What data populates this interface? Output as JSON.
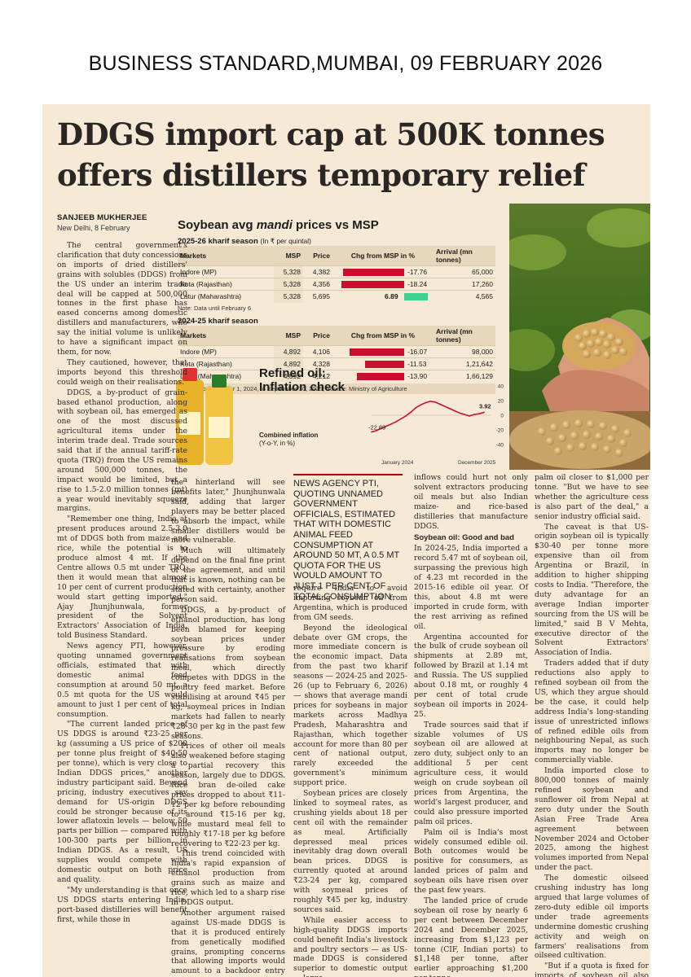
{
  "masthead": "BUSINESS STANDARD,MUMBAI, 09 FEBRUARY 2026",
  "headline": "DDGS import cap at 500K tonnes offers distillers temporary relief",
  "byline": {
    "name": "SANJEEB MUKHERJEE",
    "place": "New Delhi, 8 February"
  },
  "table": {
    "title_pre": "Soybean avg ",
    "title_em": "mandi",
    "title_post": " prices vs MSP",
    "season1": {
      "label": "2025-26 kharif season",
      "unit": "(In ₹ per quintal)",
      "note": "Note: Data until February 6"
    },
    "season2": {
      "label": "2024-25 kharif season",
      "note": "Note: From October 1, 2024, to September 30, 2025; Source: Ministry of Agriculture"
    },
    "headers": {
      "markets": "Markets",
      "msp": "MSP",
      "price": "Price",
      "chg": "Chg from MSP in %",
      "arrival": "Arrival (mn tonnes)"
    },
    "rows1": [
      {
        "market": "Indore (MP)",
        "msp": "5,328",
        "price": "4,382",
        "chg": -17.76,
        "chg_label": "-17.76",
        "arrival": "65,000"
      },
      {
        "market": "Kota (Rajasthan)",
        "msp": "5,328",
        "price": "4,356",
        "chg": -18.24,
        "chg_label": "-18.24",
        "arrival": "17,260"
      },
      {
        "market": "Latur (Maharashtra)",
        "msp": "5,328",
        "price": "5,695",
        "chg": 6.89,
        "chg_label": "6.89",
        "arrival": "4,565"
      }
    ],
    "rows2": [
      {
        "market": "Indore (MP)",
        "msp": "4,892",
        "price": "4,106",
        "chg": -16.07,
        "chg_label": "-16.07",
        "arrival": "98,000"
      },
      {
        "market": "Kota (Rajasthan)",
        "msp": "4,892",
        "price": "4,328",
        "chg": -11.53,
        "chg_label": "-11.53",
        "arrival": "1,21,642"
      },
      {
        "market": "Latur (Maharashtra)",
        "msp": "4,892",
        "price": "4,212",
        "chg": -13.9,
        "chg_label": "-13.90",
        "arrival": "1,66,129"
      }
    ],
    "colors": {
      "negative": "#c8102e",
      "positive": "#3fcf8e"
    }
  },
  "oil_chart": {
    "title": "Refined oil: Inflation check",
    "subtitle_bold": "Combined inflation",
    "subtitle": "(Y-o-Y, in %)",
    "start_label": "-22.89",
    "end_label": "3.92",
    "x_start": "January 2024",
    "x_end": "December 2025",
    "y_ticks": [
      "40",
      "20",
      "0",
      "-20",
      "-40"
    ]
  },
  "chart_data": {
    "type": "line",
    "title": "Refined oil: Inflation check",
    "ylabel": "Combined inflation (Y-o-Y, in %)",
    "ylim": [
      -40,
      40
    ],
    "x": [
      "2024-01",
      "2024-02",
      "2024-03",
      "2024-04",
      "2024-05",
      "2024-06",
      "2024-07",
      "2024-08",
      "2024-09",
      "2024-10",
      "2024-11",
      "2024-12",
      "2025-01",
      "2025-02",
      "2025-03",
      "2025-04",
      "2025-05",
      "2025-06",
      "2025-07",
      "2025-08",
      "2025-09",
      "2025-10",
      "2025-11",
      "2025-12"
    ],
    "series": [
      {
        "values": [
          -22.89,
          -21,
          -18,
          -15,
          -12,
          -9,
          -5,
          -1,
          4,
          10,
          14,
          17,
          19,
          18,
          15,
          12,
          9,
          6,
          3,
          1,
          -1,
          1,
          2,
          3.92
        ]
      }
    ],
    "annotations": [
      "-22.89",
      "3.92"
    ],
    "line_color": "#c8102e"
  },
  "pullquote": "NEWS AGENCY PTI, QUOTING UNNAMED GOVERNMENT OFFICIALS, ESTIMATED THAT WITH DOMESTIC ANIMAL FEED CONSUMPTION AT AROUND 50 MT, A 0.5 MT QUOTA FOR THE US WOULD AMOUNT TO JUST 1 PER CENT OF TOTAL CONSUMPTION",
  "col1": [
    "The central government's clarification that duty concessions on imports of dried distillers' grains with solubles (DDGS) from the US under an interim trade deal will be capped at 500,000 tonnes in the first phase has eased concerns among domestic distillers and manufacturers, who say the initial volume is unlikely to have a significant impact on them, for now.",
    "They cautioned, however, that imports beyond this threshold could weigh on their realisations.",
    "DDGS, a by-product of grain-based ethanol production, along with soybean oil, has emerged as one of the most discussed agricultural items under the interim trade deal. Trade sources said that if the annual tariff-rate quota (TRQ) from the US remains around 500,000 tonnes, the impact would be limited, but a rise to 1.5-2.0 million tonnes (mt) a year would inevitably squeeze margins.",
    "\"Remember one thing, India at present produces around 2.5-3.0 mt of DDGS both from maize and rice, while the potential is to produce almost 4 mt. If the Centre allows 0.5 mt under TRQ, then it would mean that almost 10 per cent of current production would start getting imported,\" Ajay Jhunjhunwala, former president of the Solvent Extractors' Association of India, told Business Standard.",
    "News agency PTI, however, quoting unnamed government officials, estimated that with domestic animal feed consumption at around 50 mt, a 0.5 mt quota for the US would amount to just 1 per cent of total consumption.",
    "\"The current landed price of US DDGS is around ₹23-25 per kg (assuming a US price of $200 per tonne plus freight of $40-50 per tonne), which is very close to Indian DDGS prices,\" another industry participant said. Beyond pricing, industry executives say demand for US-origin DDGS could be stronger because of its lower aflatoxin levels — below 50 parts per billion — compared with 100-300 parts per billion in Indian DDGS. As a result, US supplies would compete with domestic output on both price and quality.",
    "\"My understanding is that once US DDGS starts entering India, port-based distilleries will benefit first, while those in"
  ],
  "col2": [
    "the hinterland will see benefits later,\" Jhunjhunwala said, adding that larger players may be better placed to absorb the impact, while smaller distillers would be more vulnerable.",
    "Much will ultimately depend on the final fine print of the agreement, and until that is known, nothing can be stated with certainty, another person said.",
    "DDGS, a by-product of ethanol production, has long been blamed for keeping soybean prices under pressure by eroding realisations from soybean meal, which directly competes with DDGS in the poultry feed market. Before stabilising at around ₹45 per kg, soymeal prices in Indian markets had fallen to nearly ₹28-30 per kg in the past few seasons.",
    "Prices of other oil meals also weakened before staging a partial recovery this season, largely due to DDGS. Rice bran de-oiled cake prices dropped to about ₹11-12 per kg before rebounding to around ₹15-16 per kg, while mustard meal fell to roughly ₹17-18 per kg before recovering to ₹22-23 per kg.",
    "This trend coincided with India's rapid expansion of ethanol production from grains such as maize and rice, which led to a sharp rise in DDGS output.",
    "Another argument raised against US-made DDGS is that it is produced entirely from genetically modified grains, prompting concerns that allowing imports would amount to a backdoor entry of GM crops into India. Experts counter that applying this logic consistently would also"
  ],
  "col3": [
    "require India to avoid importing soybean oil from Argentina, which is produced from GM seeds.",
    "Beyond the ideological debate over GM crops, the more immediate concern is the economic impact. Data from the past two kharif seasons — 2024-25 and 2025-26 (up to February 6, 2026) — shows that average mandi prices for soybeans in major markets across Madhya Pradesh, Maharashtra and Rajasthan, which together account for more than 80 per cent of national output, rarely exceeded the government's minimum support price.",
    "Soybean prices are closely linked to soymeal rates, as crushing yields about 18 per cent oil with the remainder as meal. Artificially depressed meal prices inevitably drag down overall bean prices. DDGS is currently quoted at around ₹23-24 per kg, compared with soymeal prices of roughly ₹45 per kg, industry sources said.",
    "While easier access to high-quality DDGS imports could benefit India's livestock and poultry sectors — as US-made DDGS is considered superior to domestic output — large"
  ],
  "col4_a": [
    "inflows could hurt not only solvent extractors producing oil meals but also Indian maize- and rice-based distilleries that manufacture DDGS."
  ],
  "col4_heading": "Soybean oil: Good and bad",
  "col4_b": [
    "In 2024-25, India imported a record 5.47 mt of soybean oil, surpassing the previous high of 4.23 mt recorded in the 2015-16 edible oil year. Of this, about 4.8 mt were imported in crude form, with the rest arriving as refined oil.",
    "Argentina accounted for the bulk of crude soybean oil shipments at 2.89 mt, followed by Brazil at 1.14 mt and Russia. The US supplied about 0.18 mt, or roughly 4 per cent of total crude soybean oil imports in 2024-25.",
    "Trade sources said that if sizable volumes of US soybean oil are allowed at zero duty, subject only to an additional 5 per cent agriculture cess, it would weigh on crude soybean oil prices from Argentina, the world's largest producer, and could also pressure imported palm oil prices.",
    "Palm oil is India's most widely consumed edible oil. Both outcomes would be positive for consumers, as landed prices of palm and soybean oils have risen over the past few years.",
    "The landed price of crude soybean oil rose by nearly 6 per cent between December 2024 and December 2025, increasing from $1,123 per tonne (CIF, Indian ports) to $1,148 per tonne, after earlier approaching $1,200 per tonne.",
    "An influx of cheaper US soybean oil could also help keep the landed price of crude"
  ],
  "col5": [
    "palm oil closer to $1,000 per tonne. \"But we have to see whether the agriculture cess is also part of the deal,\" a senior industry official said.",
    "The caveat is that US-origin soybean oil is typically $30-40 per tonne more expensive than oil from Argentina or Brazil, in addition to higher shipping costs to India. \"Therefore, the duty advantage for an average Indian importer sourcing from the US will be limited,\" said B V Mehta, executive director of the Solvent Extractors' Association of India.",
    "Traders added that if duty reductions also apply to refined soybean oil from the US, which they argue should be the case, it could help address India's long-standing issue of unrestricted inflows of refined edible oils from neighbouring Nepal, as such imports may no longer be commercially viable.",
    "India imported close to 800,000 tonnes of mainly refined soybean and sunflower oil from Nepal at zero duty under the South Asian Free Trade Area agreement between November 2024 and October 2025, among the highest volumes imported from Nepal under the pact.",
    "The domestic oilseed crushing industry has long argued that large volumes of zero-duty edible oil imports under trade agreements undermine domestic crushing activity and weigh on farmers' realisations from oilseed cultivation.",
    "\"But if a quota is fixed for imports of soybean oil also from the US, just like DDGS, then the impact will be less,\" the official said."
  ]
}
